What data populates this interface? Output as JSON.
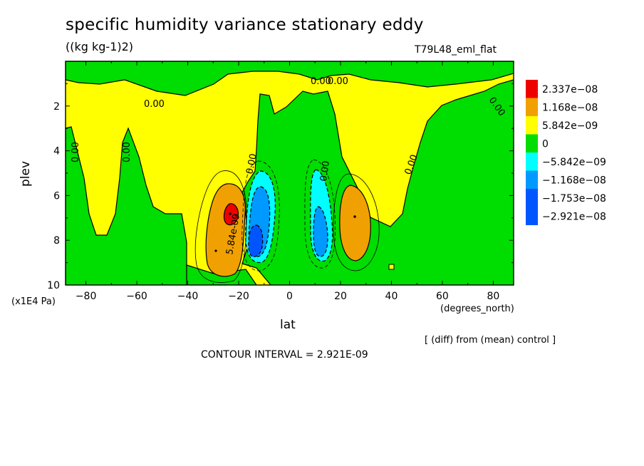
{
  "chart_data": {
    "type": "heatmap",
    "title": "specific humidity variance stationary eddy",
    "units": "((kg kg-1)2)",
    "run_name": "T79L48_eml_flat",
    "xlabel": "lat",
    "x_units": "(degrees_north)",
    "ylabel": "plev",
    "y_units": "(x1E4 Pa)",
    "xlim": [
      -88,
      88
    ],
    "ylim": [
      10,
      0
    ],
    "x_ticks": [
      "-80",
      "-60",
      "-40",
      "-20",
      "0",
      "20",
      "40",
      "60",
      "80"
    ],
    "y_ticks": [
      "2",
      "4",
      "6",
      "8",
      "10"
    ],
    "diff_note": "[ (diff) from (mean) control ]",
    "contour_interval": "CONTOUR INTERVAL = 2.921E-09",
    "colorbar": {
      "labels": [
        "2.337e-08",
        "1.168e-08",
        "5.842e-09",
        "0",
        "-5.842e-09",
        "-1.168e-08",
        "-1.753e-08",
        "-2.921e-08"
      ],
      "colors": [
        "#ee0000",
        "#f0a000",
        "#ffff00",
        "#00dd00",
        "#00ffff",
        "#0099ff",
        "#0055ff",
        "#0055ff"
      ]
    },
    "contour_labels": [
      "0.00",
      "0.00",
      "0.00",
      "0.00",
      "0.00",
      "0.00",
      "0.00",
      "0.00",
      "0.00",
      "5.84e-09"
    ],
    "features": [
      {
        "name": "positive maximum (south)",
        "lat": -23,
        "plev": 7.0,
        "level": "2.337e-08"
      },
      {
        "name": "positive maximum (north)",
        "lat": 26,
        "plev": 7.5,
        "level": "1.168e-08"
      },
      {
        "name": "negative minimum (south)",
        "lat": -14,
        "plev": 8.0,
        "level": "-2.921e-08"
      },
      {
        "name": "negative minimum (north)",
        "lat": 13,
        "plev": 8.3,
        "level": "-1.753e-08"
      }
    ]
  }
}
